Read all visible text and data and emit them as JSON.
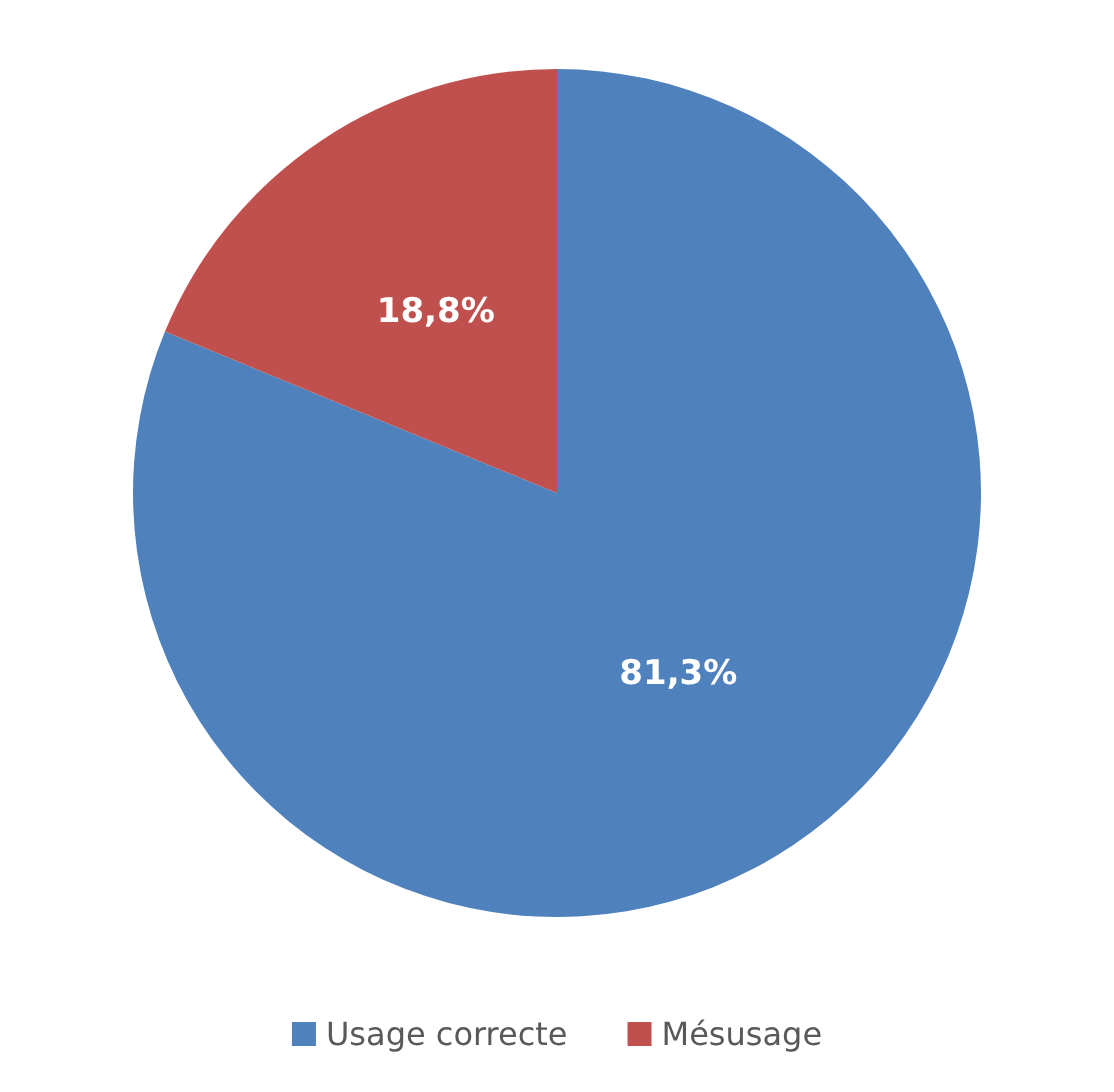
{
  "chart_data": {
    "type": "pie",
    "categories": [
      "Usage correcte",
      "Mésusage"
    ],
    "values": [
      81.3,
      18.8
    ],
    "colors": [
      "#4f81bd",
      "#c0504d"
    ],
    "value_labels": [
      "81,3%",
      "18,8%"
    ],
    "legend": "bottom"
  }
}
